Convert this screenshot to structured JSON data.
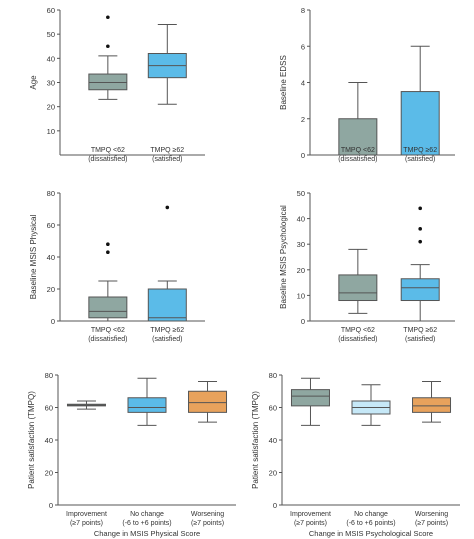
{
  "palette": {
    "axis": "#555555",
    "frame": "#bbbbbb",
    "box_edge": "#555555",
    "outlier": "#111111"
  },
  "chart_data": [
    {
      "type": "box",
      "title": "",
      "ylabel": "Age",
      "xlabel": "",
      "ylim": [
        0,
        60
      ],
      "yticks": [
        10,
        20,
        30,
        40,
        50,
        60
      ],
      "grid": false,
      "groups": [
        {
          "label": [
            "TMPQ <62",
            "(dissatisfied)"
          ],
          "color": "#8fa7a1",
          "whisker_low": 23,
          "q1": 27,
          "median": 30,
          "q3": 33.5,
          "whisker_high": 41,
          "outliers": [
            45,
            57
          ]
        },
        {
          "label": [
            "TMPQ ≥62",
            "(satisfied)"
          ],
          "color": "#5bbbe8",
          "whisker_low": 21,
          "q1": 32,
          "median": 37,
          "q3": 42,
          "whisker_high": 54,
          "outliers": []
        }
      ]
    },
    {
      "type": "box",
      "title": "",
      "ylabel": "Baseline EDSS",
      "xlabel": "",
      "ylim": [
        0,
        8
      ],
      "yticks": [
        0,
        2,
        4,
        6,
        8
      ],
      "grid": false,
      "groups": [
        {
          "label": [
            "TMPQ <62",
            "(dissatisfied)"
          ],
          "color": "#8fa7a1",
          "whisker_low": 0,
          "q1": 0,
          "median": 0,
          "q3": 2,
          "whisker_high": 4,
          "outliers": []
        },
        {
          "label": [
            "TMPQ ≥62",
            "(satisfied)"
          ],
          "color": "#5bbbe8",
          "whisker_low": 0,
          "q1": 0,
          "median": 0,
          "q3": 3.5,
          "whisker_high": 6,
          "outliers": []
        }
      ]
    },
    {
      "type": "box",
      "title": "",
      "ylabel": "Baseline MSIS Physical",
      "xlabel": "",
      "ylim": [
        0,
        80
      ],
      "yticks": [
        0,
        20,
        40,
        60,
        80
      ],
      "grid": false,
      "groups": [
        {
          "label": [
            "TMPQ <62",
            "(dissatisfied)"
          ],
          "color": "#8fa7a1",
          "whisker_low": 0,
          "q1": 2,
          "median": 6,
          "q3": 15,
          "whisker_high": 25,
          "outliers": [
            43,
            48
          ]
        },
        {
          "label": [
            "TMPQ ≥62",
            "(satisfied)"
          ],
          "color": "#5bbbe8",
          "whisker_low": 0,
          "q1": 0,
          "median": 2,
          "q3": 20,
          "whisker_high": 25,
          "outliers": [
            71
          ]
        }
      ]
    },
    {
      "type": "box",
      "title": "",
      "ylabel": "Baseline MSIS Psychological",
      "xlabel": "",
      "ylim": [
        0,
        50
      ],
      "yticks": [
        0,
        10,
        20,
        30,
        40,
        50
      ],
      "grid": false,
      "groups": [
        {
          "label": [
            "TMPQ <62",
            "(dissatisfied)"
          ],
          "color": "#8fa7a1",
          "whisker_low": 3,
          "q1": 8,
          "median": 11,
          "q3": 18,
          "whisker_high": 28,
          "outliers": []
        },
        {
          "label": [
            "TMPQ ≥62",
            "(satisfied)"
          ],
          "color": "#5bbbe8",
          "whisker_low": 0,
          "q1": 8,
          "median": 13,
          "q3": 16.5,
          "whisker_high": 22,
          "outliers": [
            31,
            36,
            44
          ]
        }
      ]
    },
    {
      "type": "box",
      "title": "",
      "ylabel": "Patient satisfaction (TMPQ)",
      "xlabel": "Change in MSIS Physical Score",
      "ylim": [
        0,
        80
      ],
      "yticks": [
        0,
        20,
        40,
        60,
        80
      ],
      "grid": false,
      "groups": [
        {
          "label": [
            "Improvement",
            "(≥7 points)"
          ],
          "color": "#8fa7a1",
          "whisker_low": 59,
          "q1": 61,
          "median": 61.5,
          "q3": 62,
          "whisker_high": 64,
          "outliers": []
        },
        {
          "label": [
            "No change",
            "(-6 to +6 points)"
          ],
          "color": "#5bbbe8",
          "whisker_low": 49,
          "q1": 57,
          "median": 60,
          "q3": 66,
          "whisker_high": 78,
          "outliers": []
        },
        {
          "label": [
            "Worsening",
            "(≥7 points)"
          ],
          "color": "#e8a25c",
          "whisker_low": 51,
          "q1": 57,
          "median": 63,
          "q3": 70,
          "whisker_high": 76,
          "outliers": []
        }
      ]
    },
    {
      "type": "box",
      "title": "",
      "ylabel": "Patient satisfaction (TMPQ)",
      "xlabel": "Change in MSIS Psychological Score",
      "ylim": [
        0,
        80
      ],
      "yticks": [
        0,
        20,
        40,
        60,
        80
      ],
      "grid": false,
      "groups": [
        {
          "label": [
            "Improvement",
            "(≥7 points)"
          ],
          "color": "#8fa7a1",
          "whisker_low": 49,
          "q1": 61,
          "median": 67,
          "q3": 71,
          "whisker_high": 78,
          "outliers": []
        },
        {
          "label": [
            "No change",
            "(-6 to +6 points)"
          ],
          "color": "#c6e8f7",
          "whisker_low": 49,
          "q1": 56,
          "median": 60,
          "q3": 64,
          "whisker_high": 74,
          "outliers": []
        },
        {
          "label": [
            "Worsening",
            "(≥7 points)"
          ],
          "color": "#e8a25c",
          "whisker_low": 51,
          "q1": 57,
          "median": 61,
          "q3": 66,
          "whisker_high": 76,
          "outliers": []
        }
      ]
    }
  ]
}
